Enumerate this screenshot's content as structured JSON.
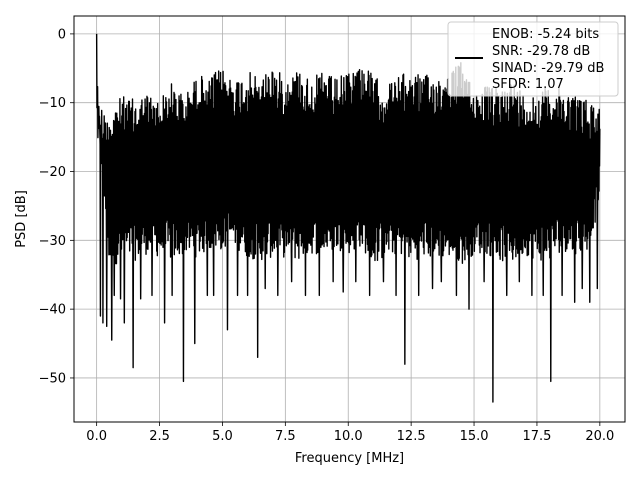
{
  "chart_data": {
    "type": "line",
    "title": "",
    "xlabel": "Frequency [MHz]",
    "ylabel": "PSD [dB]",
    "xlim": [
      -0.9,
      21.0
    ],
    "ylim": [
      -56.4,
      2.6
    ],
    "xticks": [
      0.0,
      2.5,
      5.0,
      7.5,
      10.0,
      12.5,
      15.0,
      17.5,
      20.0
    ],
    "xtick_labels": [
      "0.0",
      "2.5",
      "5.0",
      "7.5",
      "10.0",
      "12.5",
      "15.0",
      "17.5",
      "20.0"
    ],
    "yticks": [
      0,
      -10,
      -20,
      -30,
      -40,
      -50
    ],
    "ytick_labels": [
      "0",
      "−10",
      "−20",
      "−30",
      "−40",
      "−50"
    ],
    "grid": true,
    "legend": {
      "placement": "top-right",
      "entries": [
        "ENOB: -5.24 bits",
        "SNR: -29.78 dB",
        "SINAD: -29.79 dB",
        "SFDR: 1.07"
      ]
    },
    "series": [
      {
        "color": "#000000",
        "envelope_top": {
          "x": [
            0.0,
            0.02,
            0.05,
            0.1,
            0.5,
            1.0,
            1.5,
            2.0,
            2.5,
            3.0,
            3.5,
            4.0,
            4.5,
            5.0,
            5.5,
            6.0,
            6.5,
            7.0,
            7.5,
            8.0,
            8.5,
            9.0,
            9.5,
            10.0,
            10.5,
            11.0,
            11.5,
            12.0,
            12.5,
            13.0,
            13.5,
            14.0,
            14.5,
            15.0,
            15.5,
            16.0,
            16.5,
            17.0,
            17.5,
            18.0,
            18.5,
            19.0,
            19.5,
            20.0
          ],
          "y": [
            0.0,
            -5.0,
            -11.0,
            -9.5,
            -11.0,
            -9.0,
            -9.5,
            -8.5,
            -9.5,
            -7.0,
            -9.0,
            -6.0,
            -6.0,
            -5.0,
            -6.5,
            -5.5,
            -6.0,
            -4.5,
            -6.5,
            -5.0,
            -6.5,
            -5.5,
            -6.5,
            -5.5,
            -4.0,
            -6.0,
            -7.5,
            -6.0,
            -5.5,
            -6.0,
            -6.0,
            -5.5,
            -4.0,
            -8.0,
            -7.5,
            -8.0,
            -6.5,
            -8.5,
            -8.5,
            -7.5,
            -8.0,
            -8.5,
            -9.5,
            -10.0
          ]
        },
        "envelope_bottom": {
          "x": [
            0.0,
            0.5,
            1.0,
            1.5,
            2.0,
            2.5,
            3.0,
            3.5,
            4.0,
            4.5,
            5.0,
            5.5,
            6.0,
            6.5,
            7.0,
            7.5,
            8.0,
            8.5,
            9.0,
            9.5,
            10.0,
            10.5,
            11.0,
            11.5,
            12.0,
            12.5,
            13.0,
            13.5,
            14.0,
            14.5,
            15.0,
            15.5,
            16.0,
            16.5,
            17.0,
            17.5,
            18.0,
            18.5,
            19.0,
            19.5,
            20.0
          ],
          "y": [
            -12.0,
            -34.0,
            -33.0,
            -33.0,
            -32.0,
            -32.5,
            -33.0,
            -32.0,
            -32.5,
            -31.5,
            -31.5,
            -31.0,
            -32.5,
            -33.0,
            -32.5,
            -32.5,
            -33.0,
            -32.0,
            -32.0,
            -31.5,
            -32.0,
            -31.0,
            -33.5,
            -32.5,
            -32.0,
            -33.0,
            -32.5,
            -33.0,
            -32.5,
            -33.5,
            -32.0,
            -32.0,
            -33.0,
            -33.5,
            -32.0,
            -33.0,
            -33.0,
            -31.5,
            -32.0,
            -31.5,
            -25.0
          ]
        },
        "deep_notches": {
          "x": [
            0.15,
            0.25,
            0.4,
            0.6,
            0.7,
            0.95,
            1.1,
            1.45,
            1.75,
            2.2,
            2.7,
            3.0,
            3.45,
            3.9,
            4.4,
            4.65,
            5.2,
            5.6,
            6.0,
            6.4,
            6.7,
            7.2,
            7.75,
            8.3,
            8.85,
            9.4,
            9.8,
            10.3,
            10.85,
            11.4,
            11.9,
            12.25,
            12.8,
            13.35,
            13.7,
            14.3,
            14.8,
            15.4,
            15.75,
            16.3,
            16.8,
            17.3,
            17.75,
            18.05,
            18.5,
            19.0,
            19.3,
            19.6,
            19.9
          ],
          "y": [
            -41.0,
            -42.0,
            -42.5,
            -44.5,
            -38.0,
            -38.5,
            -42.0,
            -48.5,
            -38.5,
            -38.0,
            -42.0,
            -38.0,
            -50.5,
            -45.0,
            -38.0,
            -38.0,
            -43.0,
            -38.0,
            -38.0,
            -47.0,
            -37.0,
            -38.0,
            -36.0,
            -38.0,
            -38.0,
            -36.0,
            -37.5,
            -36.0,
            -38.0,
            -36.0,
            -38.0,
            -48.0,
            -38.0,
            -37.0,
            -36.0,
            -38.0,
            -40.0,
            -36.0,
            -53.5,
            -38.0,
            -36.0,
            -38.0,
            -38.0,
            -50.5,
            -38.0,
            -39.0,
            -37.0,
            -39.0,
            -37.0
          ]
        }
      }
    ]
  }
}
